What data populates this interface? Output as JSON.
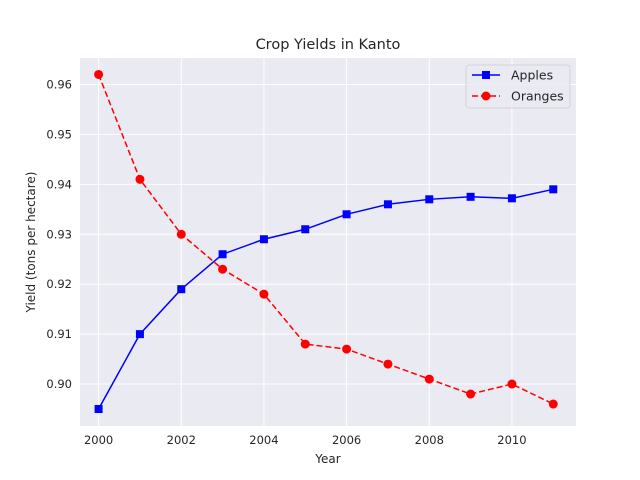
{
  "chart_data": {
    "type": "line",
    "title": "Crop Yields in Kanto",
    "xlabel": "Year",
    "ylabel": "Yield (tons per hectare)",
    "x": [
      2000,
      2001,
      2002,
      2003,
      2004,
      2005,
      2006,
      2007,
      2008,
      2009,
      2010,
      2011
    ],
    "xlim": [
      1999.55,
      2011.55
    ],
    "ylim": [
      0.8916,
      0.9653
    ],
    "xticks": [
      2000,
      2002,
      2004,
      2006,
      2008,
      2010
    ],
    "yticks": [
      0.9,
      0.91,
      0.92,
      0.93,
      0.94,
      0.95,
      0.96
    ],
    "grid": true,
    "background": "#eaeaf2",
    "legend_position": "top-right",
    "series": [
      {
        "name": "Apples",
        "values": [
          0.895,
          0.91,
          0.919,
          0.926,
          0.929,
          0.931,
          0.934,
          0.936,
          0.937,
          0.9375,
          0.9372,
          0.939
        ],
        "color": "#0000ff",
        "marker": "square",
        "linestyle": "solid"
      },
      {
        "name": "Oranges",
        "values": [
          0.962,
          0.941,
          0.93,
          0.923,
          0.918,
          0.908,
          0.907,
          0.904,
          0.901,
          0.898,
          0.9,
          0.896
        ],
        "color": "#ff0000",
        "marker": "circle",
        "linestyle": "dashed"
      }
    ]
  }
}
